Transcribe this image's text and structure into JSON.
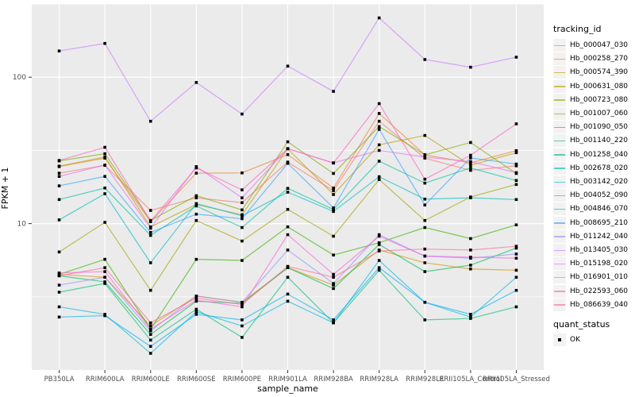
{
  "chart_data": {
    "type": "line",
    "title": "",
    "xlabel": "sample_name",
    "ylabel": "FPKM + 1",
    "y_scale": "log10",
    "ylim": [
      1,
      316.23
    ],
    "y_major_ticks": [
      10,
      100
    ],
    "y_minor_gridlines": [
      3.162,
      31.62,
      316.23
    ],
    "grid": true,
    "panel_bg": "#EBEBEB",
    "grid_color": "#FFFFFF",
    "tick_text_color": "#4D4D4D",
    "marker": "square",
    "marker_color": "#000000",
    "legend_title": "tracking_id",
    "legend_position": "right",
    "quant_legend": {
      "title": "quant_status",
      "items": [
        {
          "label": "OK",
          "marker": "square",
          "color": "#000000"
        }
      ]
    },
    "categories": [
      "PB350LA",
      "RRIM600LA",
      "RRIM600LE",
      "RRIM600SE",
      "RRIM600PE",
      "RRIM901LA",
      "RRIM928BA",
      "RRIM928LA",
      "RRIM928LE",
      "RRII105LA_Control",
      "RRII105LA_Stressed"
    ],
    "series": [
      {
        "name": "Hb_000047_030",
        "color": "#F8766D",
        "values": [
          22.1,
          25.0,
          12.3,
          15.0,
          13.9,
          26.3,
          16.8,
          50.0,
          28.0,
          23.1,
          24.8
        ]
      },
      {
        "name": "Hb_000258_270",
        "color": "#EA8331",
        "values": [
          24.5,
          28.0,
          10.3,
          22.1,
          22.2,
          29.6,
          17.5,
          56.5,
          29.5,
          26.0,
          31.5
        ]
      },
      {
        "name": "Hb_000574_390",
        "color": "#D89000",
        "values": [
          4.5,
          4.3,
          2.0,
          3.2,
          2.9,
          5.0,
          3.8,
          6.6,
          5.4,
          4.9,
          4.8
        ]
      },
      {
        "name": "Hb_000631_080",
        "color": "#C09B00",
        "values": [
          24.7,
          28.5,
          9.5,
          13.5,
          11.5,
          32.4,
          15.8,
          34.5,
          40.0,
          25.0,
          30.5
        ]
      },
      {
        "name": "Hb_000723_080",
        "color": "#A3A500",
        "values": [
          6.4,
          10.2,
          3.5,
          10.5,
          7.6,
          12.5,
          8.2,
          20.0,
          10.5,
          15.2,
          18.5
        ]
      },
      {
        "name": "Hb_001007_060",
        "color": "#7CAE00",
        "values": [
          26.8,
          30.0,
          10.5,
          15.5,
          12.4,
          36.2,
          22.0,
          46.0,
          29.5,
          35.8,
          22.0
        ]
      },
      {
        "name": "Hb_001090_050",
        "color": "#39B600",
        "values": [
          4.5,
          5.7,
          1.9,
          5.7,
          5.6,
          9.5,
          6.1,
          7.4,
          9.4,
          7.9,
          9.8
        ]
      },
      {
        "name": "Hb_001140_220",
        "color": "#00BB4E",
        "values": [
          4.4,
          4.0,
          1.75,
          2.95,
          2.85,
          5.0,
          3.6,
          7.2,
          4.7,
          5.2,
          6.8
        ]
      },
      {
        "name": "Hb_001258_040",
        "color": "#00BF7D",
        "values": [
          3.4,
          3.9,
          1.6,
          2.6,
          1.67,
          4.3,
          2.1,
          4.8,
          2.2,
          2.25,
          2.7
        ]
      },
      {
        "name": "Hb_002678_020",
        "color": "#00C1A3",
        "values": [
          14.6,
          17.5,
          8.3,
          13.2,
          9.4,
          17.4,
          12.5,
          26.7,
          18.9,
          24.0,
          19.7
        ]
      },
      {
        "name": "Hb_003142_020",
        "color": "#00BFC4",
        "values": [
          10.6,
          16.0,
          5.4,
          13.7,
          11.3,
          16.4,
          12.1,
          20.9,
          14.7,
          15.0,
          14.6
        ]
      },
      {
        "name": "Hb_004052_090",
        "color": "#00BAE0",
        "values": [
          2.7,
          2.4,
          1.3,
          2.5,
          2.0,
          2.95,
          2.1,
          5.6,
          2.9,
          2.3,
          4.3
        ]
      },
      {
        "name": "Hb_004846_070",
        "color": "#00B0F6",
        "values": [
          2.3,
          2.35,
          1.45,
          2.4,
          2.2,
          3.3,
          2.2,
          5.0,
          2.9,
          2.4,
          3.5
        ]
      },
      {
        "name": "Hb_008695_210",
        "color": "#35A2FF",
        "values": [
          18.1,
          21.0,
          8.7,
          11.6,
          10.8,
          25.8,
          12.8,
          44.0,
          13.4,
          28.1,
          25.5
        ]
      },
      {
        "name": "Hb_011242_040",
        "color": "#9590FF",
        "values": [
          3.8,
          4.3,
          1.85,
          3.2,
          2.9,
          6.6,
          3.9,
          8.4,
          6.0,
          5.8,
          6.2
        ]
      },
      {
        "name": "Hb_013405_030",
        "color": "#C77CFF",
        "values": [
          151,
          170,
          50,
          92,
          56,
          119,
          80,
          254,
          132,
          117,
          137
        ]
      },
      {
        "name": "Hb_015198_020",
        "color": "#E76BF3",
        "values": [
          21.0,
          25.1,
          9.3,
          24.5,
          15.0,
          32.5,
          26.0,
          31.6,
          28.5,
          26.5,
          22.3
        ]
      },
      {
        "name": "Hb_016901_010",
        "color": "#FA62DB",
        "values": [
          4.6,
          4.7,
          1.9,
          3.0,
          2.7,
          8.4,
          4.5,
          8.2,
          6.0,
          5.9,
          5.8
        ]
      },
      {
        "name": "Hb_022593_060",
        "color": "#FF62BC",
        "values": [
          27.0,
          33.2,
          10.4,
          24.0,
          17.0,
          32.5,
          25.9,
          66.0,
          20.1,
          29.3,
          48.0
        ]
      },
      {
        "name": "Hb_086639_040",
        "color": "#FF6A98",
        "values": [
          4.4,
          5.0,
          2.1,
          3.1,
          2.8,
          5.1,
          4.3,
          6.5,
          6.7,
          6.6,
          7.0
        ]
      }
    ]
  }
}
